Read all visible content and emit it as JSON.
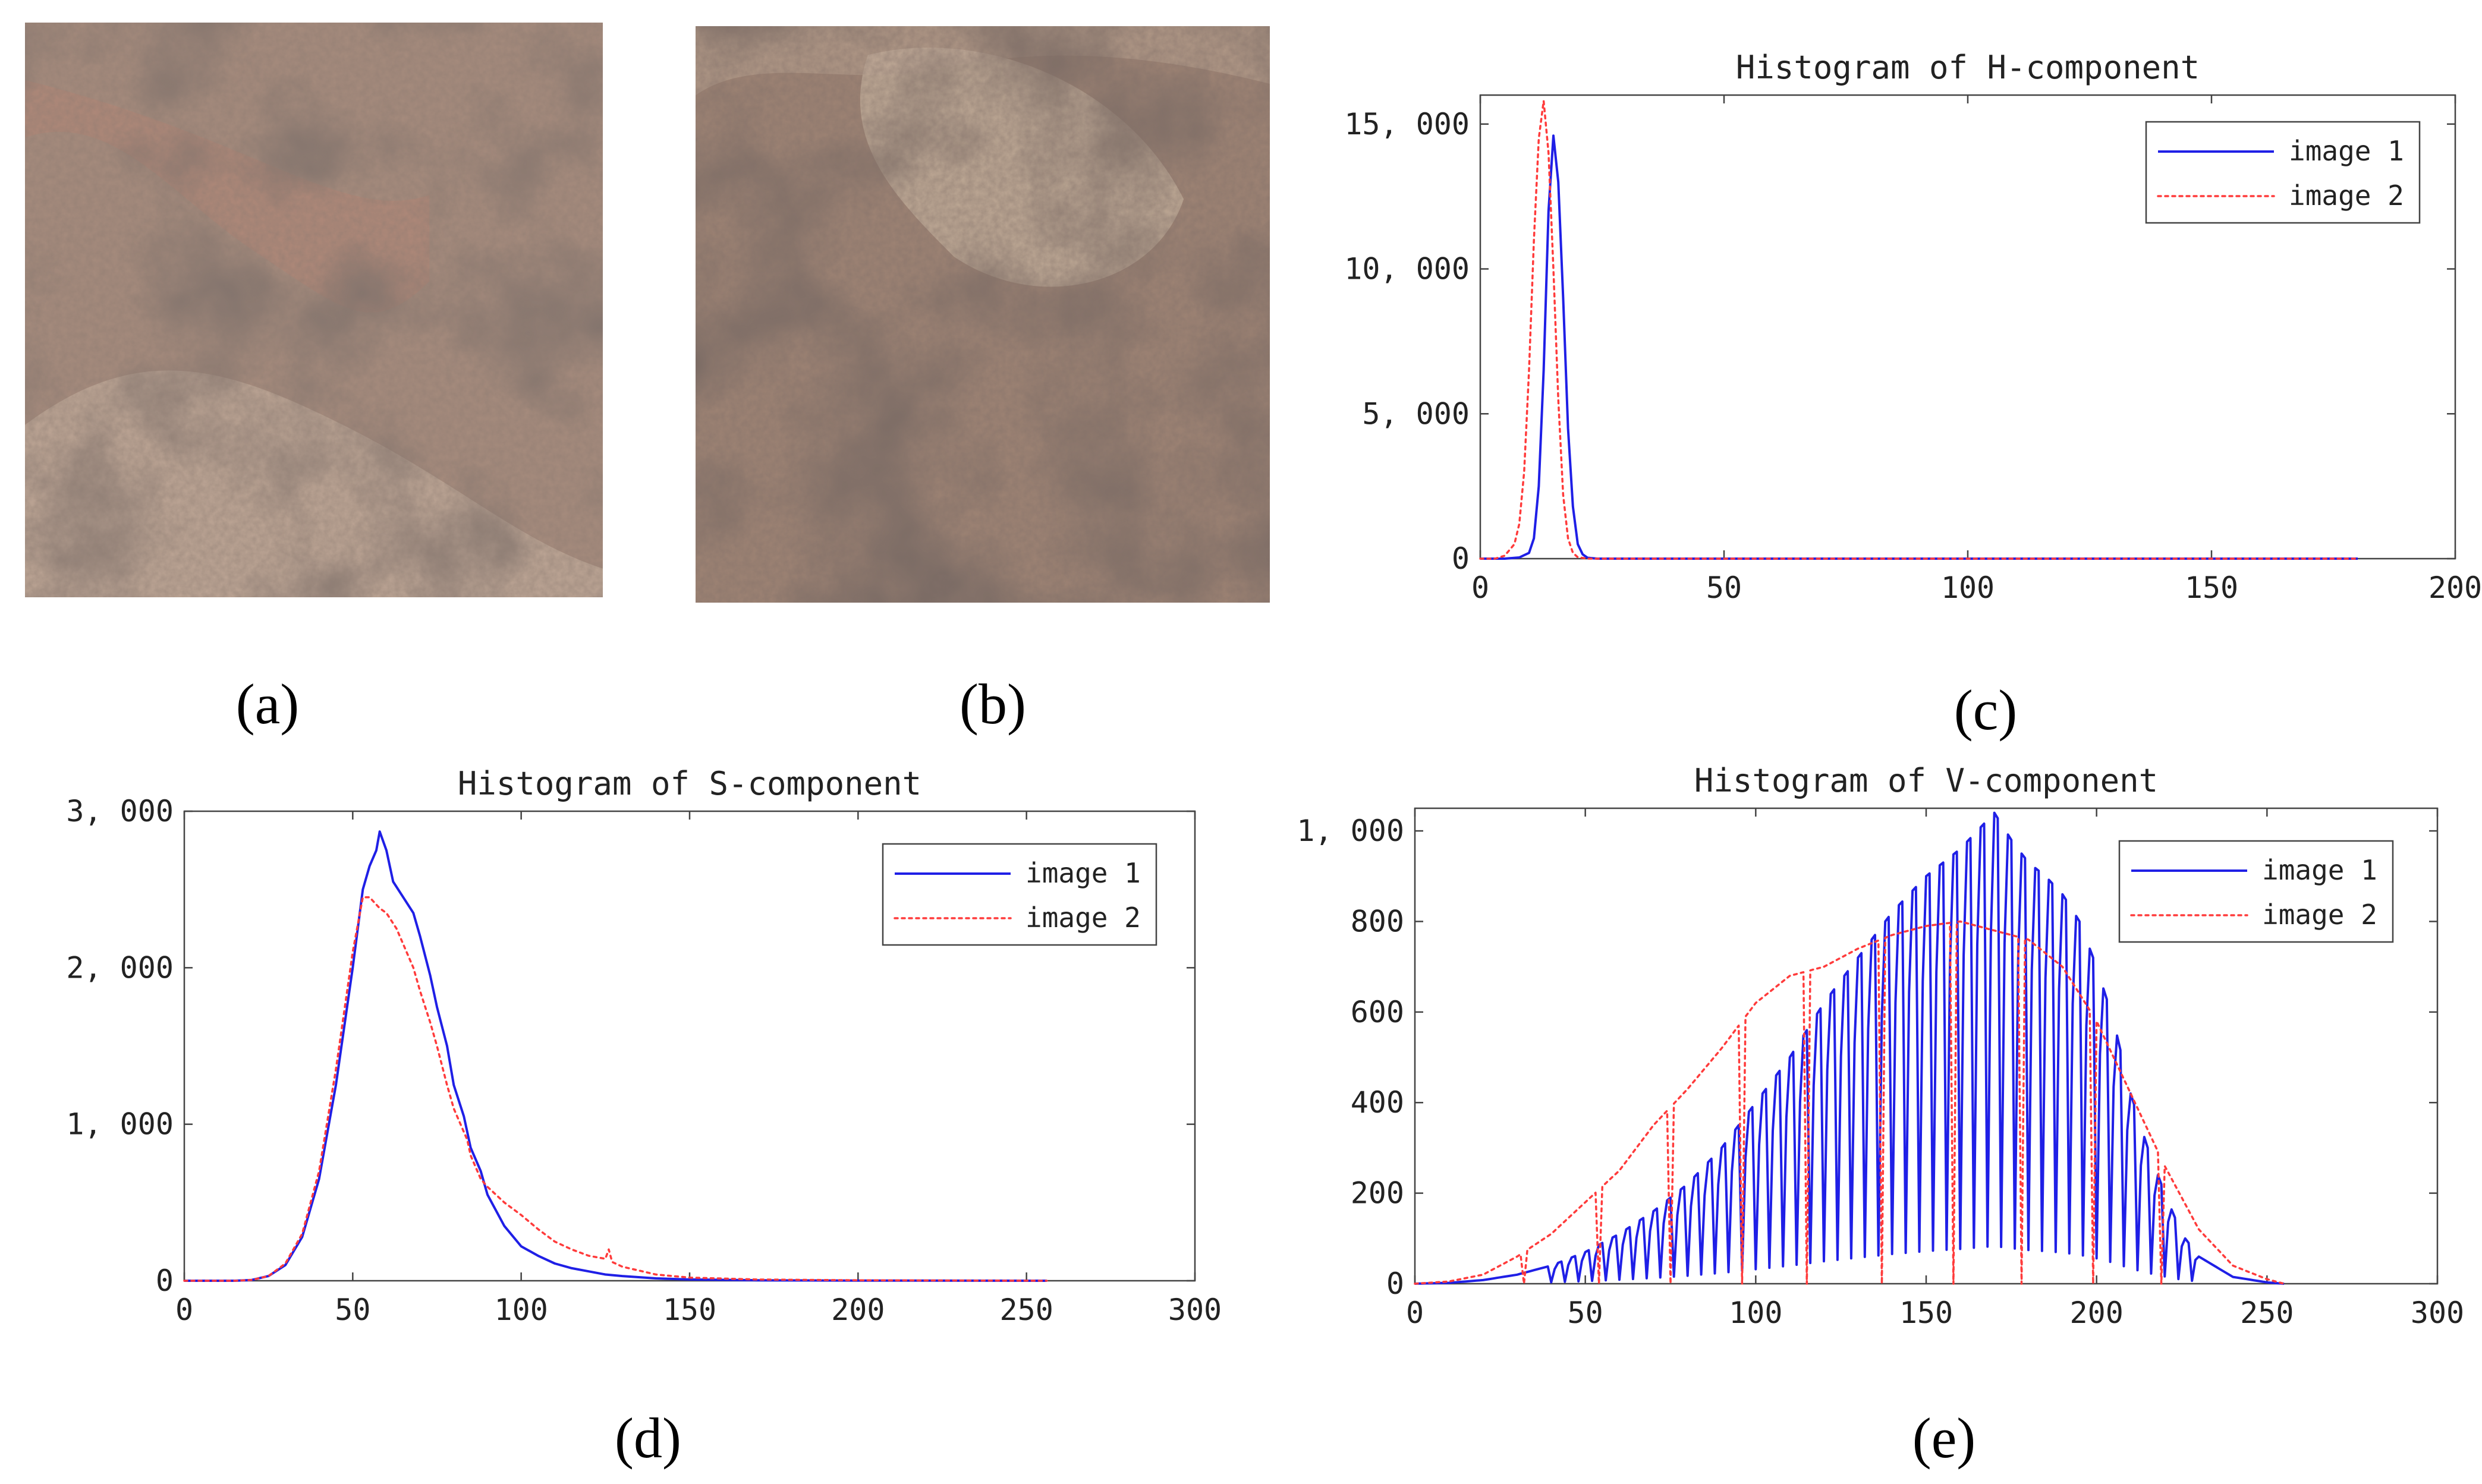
{
  "panels": {
    "a": "(a)",
    "b": "(b)",
    "c": "(c)",
    "d": "(d)",
    "e": "(e)"
  },
  "colors": {
    "image1": "#1f1fe6",
    "image2": "#ff3b3b",
    "photo_base": "#9e8577",
    "photo_dark": "#3d2f29",
    "photo_light": "#cbb39f",
    "photo_pink": "#b57a72"
  },
  "chart_data": [
    {
      "id": "h",
      "type": "line",
      "title": "Histogram of H-component",
      "xlim": [
        0,
        200
      ],
      "ylim": [
        0,
        16000
      ],
      "xticks": [
        0,
        50,
        100,
        150,
        200
      ],
      "xtick_labels": [
        "0",
        "50",
        "100",
        "150",
        "200"
      ],
      "yticks": [
        0,
        5000,
        10000,
        15000
      ],
      "ytick_labels": [
        "0",
        "5, 000",
        "10, 000",
        "15, 000"
      ],
      "grid": false,
      "legend": "top-right",
      "series": [
        {
          "name": "image 1",
          "style": "solid",
          "points": [
            [
              0,
              0
            ],
            [
              5,
              0
            ],
            [
              8,
              40
            ],
            [
              10,
              200
            ],
            [
              11,
              700
            ],
            [
              12,
              2500
            ],
            [
              13,
              6500
            ],
            [
              14,
              12000
            ],
            [
              15,
              14600
            ],
            [
              16,
              13000
            ],
            [
              17,
              9000
            ],
            [
              18,
              4500
            ],
            [
              19,
              1800
            ],
            [
              20,
              500
            ],
            [
              21,
              150
            ],
            [
              22,
              30
            ],
            [
              24,
              0
            ],
            [
              180,
              0
            ]
          ]
        },
        {
          "name": "image 2",
          "style": "dotted",
          "points": [
            [
              0,
              0
            ],
            [
              3,
              0
            ],
            [
              5,
              100
            ],
            [
              7,
              500
            ],
            [
              8,
              1200
            ],
            [
              9,
              3000
            ],
            [
              10,
              6500
            ],
            [
              11,
              11000
            ],
            [
              12,
              14500
            ],
            [
              13,
              15800
            ],
            [
              14,
              14000
            ],
            [
              15,
              10000
            ],
            [
              16,
              5500
            ],
            [
              17,
              2200
            ],
            [
              18,
              700
            ],
            [
              19,
              200
            ],
            [
              20,
              50
            ],
            [
              22,
              0
            ],
            [
              180,
              0
            ]
          ]
        }
      ]
    },
    {
      "id": "s",
      "type": "line",
      "title": "Histogram of S-component",
      "xlim": [
        0,
        300
      ],
      "ylim": [
        0,
        3000
      ],
      "xticks": [
        0,
        50,
        100,
        150,
        200,
        250,
        300
      ],
      "xtick_labels": [
        "0",
        "50",
        "100",
        "150",
        "200",
        "250",
        "300"
      ],
      "yticks": [
        0,
        1000,
        2000,
        3000
      ],
      "ytick_labels": [
        "0",
        "1, 000",
        "2, 000",
        "3, 000"
      ],
      "grid": false,
      "legend": "top-right",
      "series": [
        {
          "name": "image 1",
          "style": "solid",
          "points": [
            [
              0,
              0
            ],
            [
              15,
              0
            ],
            [
              20,
              5
            ],
            [
              25,
              30
            ],
            [
              30,
              100
            ],
            [
              35,
              280
            ],
            [
              40,
              650
            ],
            [
              45,
              1250
            ],
            [
              50,
              2000
            ],
            [
              53,
              2500
            ],
            [
              55,
              2650
            ],
            [
              57,
              2750
            ],
            [
              58,
              2870
            ],
            [
              60,
              2750
            ],
            [
              62,
              2550
            ],
            [
              65,
              2450
            ],
            [
              68,
              2350
            ],
            [
              70,
              2200
            ],
            [
              73,
              1950
            ],
            [
              75,
              1750
            ],
            [
              78,
              1500
            ],
            [
              80,
              1250
            ],
            [
              83,
              1050
            ],
            [
              85,
              850
            ],
            [
              88,
              700
            ],
            [
              90,
              550
            ],
            [
              95,
              350
            ],
            [
              100,
              220
            ],
            [
              105,
              160
            ],
            [
              110,
              110
            ],
            [
              115,
              80
            ],
            [
              120,
              60
            ],
            [
              125,
              40
            ],
            [
              130,
              30
            ],
            [
              140,
              15
            ],
            [
              150,
              8
            ],
            [
              170,
              3
            ],
            [
              200,
              1
            ],
            [
              256,
              0
            ]
          ]
        },
        {
          "name": "image 2",
          "style": "dotted",
          "points": [
            [
              0,
              0
            ],
            [
              15,
              0
            ],
            [
              20,
              5
            ],
            [
              25,
              30
            ],
            [
              30,
              110
            ],
            [
              35,
              300
            ],
            [
              40,
              700
            ],
            [
              45,
              1350
            ],
            [
              50,
              2100
            ],
            [
              53,
              2450
            ],
            [
              55,
              2450
            ],
            [
              58,
              2380
            ],
            [
              60,
              2350
            ],
            [
              63,
              2250
            ],
            [
              65,
              2150
            ],
            [
              68,
              2000
            ],
            [
              70,
              1850
            ],
            [
              73,
              1650
            ],
            [
              75,
              1500
            ],
            [
              78,
              1250
            ],
            [
              80,
              1100
            ],
            [
              82,
              1000
            ],
            [
              84,
              900
            ],
            [
              85,
              800
            ],
            [
              88,
              650
            ],
            [
              90,
              600
            ],
            [
              95,
              500
            ],
            [
              100,
              420
            ],
            [
              105,
              330
            ],
            [
              110,
              250
            ],
            [
              115,
              200
            ],
            [
              120,
              160
            ],
            [
              125,
              140
            ],
            [
              126,
              200
            ],
            [
              127,
              120
            ],
            [
              130,
              90
            ],
            [
              140,
              40
            ],
            [
              150,
              20
            ],
            [
              170,
              8
            ],
            [
              200,
              3
            ],
            [
              256,
              0
            ]
          ]
        }
      ]
    },
    {
      "id": "v",
      "type": "line",
      "title": "Histogram of V-component",
      "xlim": [
        0,
        300
      ],
      "ylim": [
        0,
        1050
      ],
      "xticks": [
        0,
        50,
        100,
        150,
        200,
        250,
        300
      ],
      "xtick_labels": [
        "0",
        "50",
        "100",
        "150",
        "200",
        "250",
        "300"
      ],
      "yticks": [
        0,
        200,
        400,
        600,
        800,
        1000
      ],
      "ytick_labels": [
        "0",
        "200",
        "400",
        "600",
        "800",
        "1, 000"
      ],
      "grid": false,
      "legend": "top-right",
      "series": [
        {
          "name": "image 1",
          "style": "solid",
          "note_values": "upper envelope; every other bin dips to near zero (comb pattern)",
          "envelope": [
            [
              0,
              0
            ],
            [
              10,
              2
            ],
            [
              20,
              8
            ],
            [
              30,
              20
            ],
            [
              40,
              40
            ],
            [
              50,
              70
            ],
            [
              60,
              110
            ],
            [
              70,
              160
            ],
            [
              80,
              220
            ],
            [
              90,
              300
            ],
            [
              100,
              400
            ],
            [
              110,
              500
            ],
            [
              120,
              620
            ],
            [
              130,
              720
            ],
            [
              140,
              820
            ],
            [
              150,
              900
            ],
            [
              160,
              960
            ],
            [
              165,
              1000
            ],
            [
              170,
              1040
            ],
            [
              175,
              980
            ],
            [
              180,
              930
            ],
            [
              185,
              900
            ],
            [
              190,
              860
            ],
            [
              195,
              800
            ],
            [
              200,
              700
            ],
            [
              205,
              580
            ],
            [
              210,
              420
            ],
            [
              215,
              300
            ],
            [
              220,
              200
            ],
            [
              225,
              110
            ],
            [
              230,
              60
            ],
            [
              240,
              15
            ],
            [
              250,
              3
            ],
            [
              255,
              0
            ]
          ],
          "comb_start": 40,
          "comb_end": 230,
          "comb_period": 4
        },
        {
          "name": "image 2",
          "style": "dotted",
          "envelope": [
            [
              0,
              0
            ],
            [
              10,
              5
            ],
            [
              20,
              20
            ],
            [
              30,
              60
            ],
            [
              40,
              110
            ],
            [
              50,
              180
            ],
            [
              60,
              250
            ],
            [
              70,
              350
            ],
            [
              80,
              430
            ],
            [
              90,
              520
            ],
            [
              100,
              620
            ],
            [
              110,
              680
            ],
            [
              120,
              700
            ],
            [
              130,
              740
            ],
            [
              140,
              770
            ],
            [
              150,
              790
            ],
            [
              160,
              800
            ],
            [
              170,
              780
            ],
            [
              180,
              760
            ],
            [
              190,
              700
            ],
            [
              200,
              580
            ],
            [
              210,
              420
            ],
            [
              220,
              260
            ],
            [
              230,
              120
            ],
            [
              240,
              40
            ],
            [
              250,
              10
            ],
            [
              255,
              0
            ]
          ],
          "drop_bins": [
            32,
            54,
            75,
            96,
            115,
            137,
            158,
            178,
            199,
            219
          ]
        }
      ]
    }
  ]
}
